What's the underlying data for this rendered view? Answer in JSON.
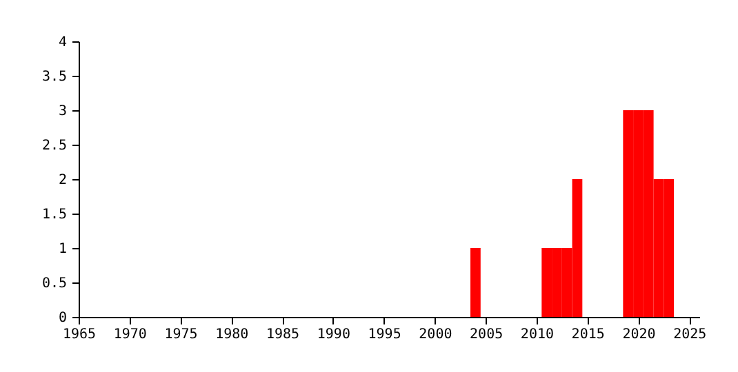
{
  "chart_data": {
    "type": "histogram",
    "bins": [
      2003.5,
      2004.5,
      2005.5,
      2006.5,
      2007.5,
      2008.5,
      2009.5,
      2010.5,
      2011.5,
      2012.5,
      2013.5,
      2014.5,
      2015.5,
      2016.5,
      2017.5,
      2018.5,
      2019.5,
      2020.5,
      2021.5,
      2022.5,
      2023.5
    ],
    "values": [
      1,
      0,
      0,
      0,
      0,
      0,
      0,
      1,
      1,
      1,
      2,
      0,
      0,
      0,
      0,
      3,
      3,
      3,
      2,
      2
    ],
    "color": "#ff0000",
    "xlim": [
      1965,
      2026
    ],
    "xticks": [
      1965,
      1970,
      1975,
      1980,
      1985,
      1990,
      1995,
      2000,
      2005,
      2010,
      2015,
      2020,
      2025
    ],
    "ylim": [
      0,
      4
    ],
    "yticks": [
      0,
      0.5,
      1,
      1.5,
      2,
      2.5,
      3,
      3.5,
      4
    ],
    "grid": false
  }
}
